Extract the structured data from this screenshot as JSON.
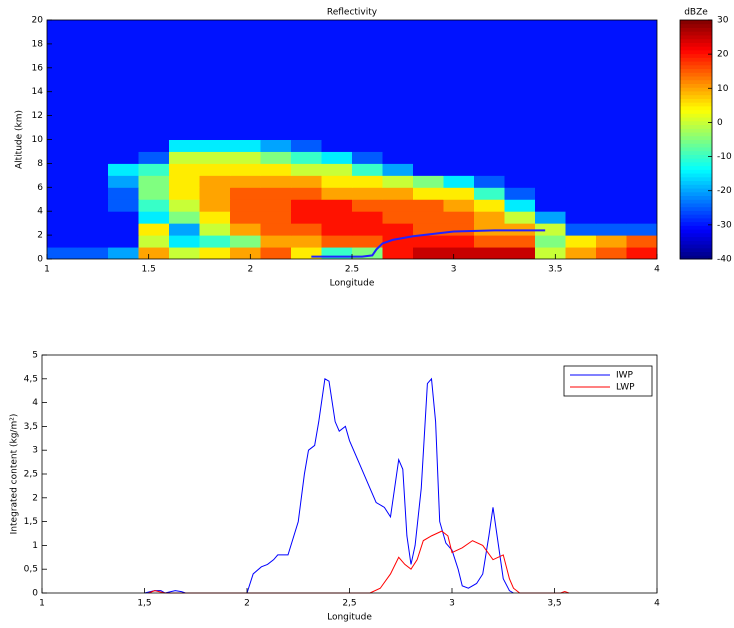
{
  "chart_data": [
    {
      "type": "heatmap",
      "title": "Reflectivity",
      "x_label": "Longitude",
      "y_label": "Altitude (km)",
      "xlim": [
        1,
        4
      ],
      "xticks": [
        1,
        1.5,
        2,
        2.5,
        3,
        3.5,
        4
      ],
      "ylim": [
        0,
        20
      ],
      "yticks": [
        0,
        2,
        4,
        6,
        8,
        10,
        12,
        14,
        16,
        18,
        20
      ],
      "xbins": [
        1,
        1.15,
        1.3,
        1.45,
        1.6,
        1.75,
        1.9,
        2.05,
        2.2,
        2.35,
        2.5,
        2.65,
        2.8,
        2.95,
        3.1,
        3.25,
        3.4,
        3.55,
        3.7,
        3.85,
        4
      ],
      "ybins": [
        0,
        1,
        2,
        3,
        4,
        5,
        6,
        7,
        8,
        9,
        10,
        20
      ],
      "z": [
        [
          -25,
          -25,
          -20,
          10,
          0,
          5,
          10,
          15,
          5,
          -10,
          -5,
          20,
          25,
          25,
          25,
          25,
          0,
          10,
          15,
          20
        ],
        [
          -30,
          -30,
          -30,
          0,
          -15,
          -10,
          -5,
          10,
          10,
          15,
          15,
          20,
          20,
          20,
          15,
          15,
          -5,
          5,
          10,
          15
        ],
        [
          -30,
          -30,
          -30,
          5,
          -20,
          0,
          10,
          15,
          15,
          20,
          20,
          20,
          15,
          15,
          10,
          10,
          0,
          -25,
          -25,
          -25
        ],
        [
          -30,
          -30,
          -30,
          -15,
          -5,
          5,
          15,
          15,
          20,
          20,
          20,
          15,
          15,
          15,
          10,
          0,
          -20,
          -30,
          -30,
          -30
        ],
        [
          -30,
          -30,
          -25,
          -10,
          0,
          10,
          15,
          15,
          20,
          20,
          15,
          15,
          15,
          10,
          5,
          -15,
          -30,
          -30,
          -30,
          -30
        ],
        [
          -30,
          -30,
          -25,
          -5,
          5,
          10,
          15,
          15,
          15,
          10,
          10,
          10,
          5,
          5,
          -10,
          -25,
          -30,
          -30,
          -30,
          -30
        ],
        [
          -30,
          -30,
          -20,
          -5,
          5,
          10,
          10,
          10,
          10,
          5,
          5,
          0,
          -5,
          -15,
          -25,
          -30,
          -30,
          -30,
          -30,
          -30
        ],
        [
          -30,
          -30,
          -15,
          -10,
          5,
          5,
          5,
          5,
          0,
          0,
          -10,
          -20,
          -30,
          -30,
          -30,
          -30,
          -30,
          -30,
          -30,
          -30
        ],
        [
          -30,
          -30,
          -30,
          -25,
          0,
          0,
          0,
          -5,
          -10,
          -15,
          -25,
          -30,
          -30,
          -30,
          -30,
          -30,
          -30,
          -30,
          -30,
          -30
        ],
        [
          -30,
          -30,
          -30,
          -30,
          -15,
          -15,
          -15,
          -20,
          -25,
          -30,
          -30,
          -30,
          -30,
          -30,
          -30,
          -30,
          -30,
          -30,
          -30,
          -30
        ],
        [
          -30,
          -30,
          -30,
          -30,
          -30,
          -30,
          -30,
          -30,
          -30,
          -30,
          -30,
          -30,
          -30,
          -30,
          -30,
          -30,
          -30,
          -30,
          -30,
          -30
        ]
      ],
      "colormap": "jet",
      "clim": [
        -40,
        30
      ],
      "colorbar_label": "dBZe",
      "cticks": [
        -40,
        -30,
        -20,
        -10,
        0,
        10,
        20,
        30
      ],
      "series": [
        {
          "color": "#2222ff",
          "x": [
            2.3,
            2.55,
            2.6,
            2.62,
            2.65,
            2.7,
            2.8,
            2.9,
            3.0,
            3.2,
            3.45
          ],
          "values": [
            0.2,
            0.2,
            0.3,
            0.8,
            1.3,
            1.6,
            1.9,
            2.1,
            2.3,
            2.4,
            2.4
          ]
        }
      ]
    },
    {
      "type": "line",
      "x_label": "Longitude",
      "y_label": "Integrated content (kg/m²)",
      "xlim": [
        1,
        4
      ],
      "xticks": [
        1,
        {
          "value": 1.5,
          "label": "1,5"
        },
        2,
        {
          "value": 2.5,
          "label": "2,5"
        },
        3,
        {
          "value": 3.5,
          "label": "3,5"
        },
        4
      ],
      "ylim": [
        0,
        5
      ],
      "yticks": [
        0,
        {
          "value": 0.5,
          "label": "0,5"
        },
        1,
        {
          "value": 1.5,
          "label": "1,5"
        },
        2,
        {
          "value": 2.5,
          "label": "2,5"
        },
        3,
        {
          "value": 3.5,
          "label": "3,5"
        },
        4,
        {
          "value": 4.5,
          "label": "4,5"
        },
        5
      ],
      "legend": "upper right",
      "series": [
        {
          "name": "IWP",
          "color": "#0000ff",
          "x": [
            1.5,
            1.55,
            1.58,
            1.6,
            1.65,
            1.68,
            1.7,
            2.0,
            2.03,
            2.07,
            2.1,
            2.13,
            2.15,
            2.2,
            2.25,
            2.28,
            2.3,
            2.33,
            2.35,
            2.38,
            2.4,
            2.43,
            2.45,
            2.48,
            2.5,
            2.55,
            2.6,
            2.63,
            2.67,
            2.7,
            2.72,
            2.74,
            2.76,
            2.78,
            2.8,
            2.82,
            2.85,
            2.88,
            2.9,
            2.92,
            2.94,
            2.97,
            3.0,
            3.03,
            3.05,
            3.08,
            3.12,
            3.15,
            3.18,
            3.2,
            3.22,
            3.25,
            3.28,
            3.3
          ],
          "values": [
            0,
            0.05,
            0.05,
            0,
            0.05,
            0.03,
            0,
            0,
            0.4,
            0.55,
            0.6,
            0.7,
            0.8,
            0.8,
            1.5,
            2.5,
            3.0,
            3.1,
            3.6,
            4.5,
            4.45,
            3.6,
            3.4,
            3.5,
            3.2,
            2.7,
            2.2,
            1.9,
            1.8,
            1.6,
            2.2,
            2.8,
            2.6,
            1.2,
            0.6,
            1.0,
            2.2,
            4.4,
            4.5,
            3.6,
            1.5,
            1.05,
            0.9,
            0.5,
            0.15,
            0.1,
            0.2,
            0.4,
            1.2,
            1.8,
            1.2,
            0.3,
            0.05,
            0
          ]
        },
        {
          "name": "LWP",
          "color": "#ff0000",
          "x": [
            1.52,
            1.55,
            1.6,
            2.6,
            2.65,
            2.7,
            2.74,
            2.77,
            2.8,
            2.83,
            2.86,
            2.9,
            2.95,
            2.98,
            3.0,
            3.05,
            3.1,
            3.15,
            3.2,
            3.25,
            3.28,
            3.3,
            3.33,
            3.53,
            3.55,
            3.57
          ],
          "values": [
            0,
            0.05,
            0,
            0,
            0.1,
            0.4,
            0.75,
            0.6,
            0.5,
            0.7,
            1.1,
            1.2,
            1.3,
            1.2,
            0.85,
            0.95,
            1.1,
            1.0,
            0.7,
            0.8,
            0.3,
            0.1,
            0,
            0,
            0.03,
            0
          ]
        }
      ]
    }
  ]
}
